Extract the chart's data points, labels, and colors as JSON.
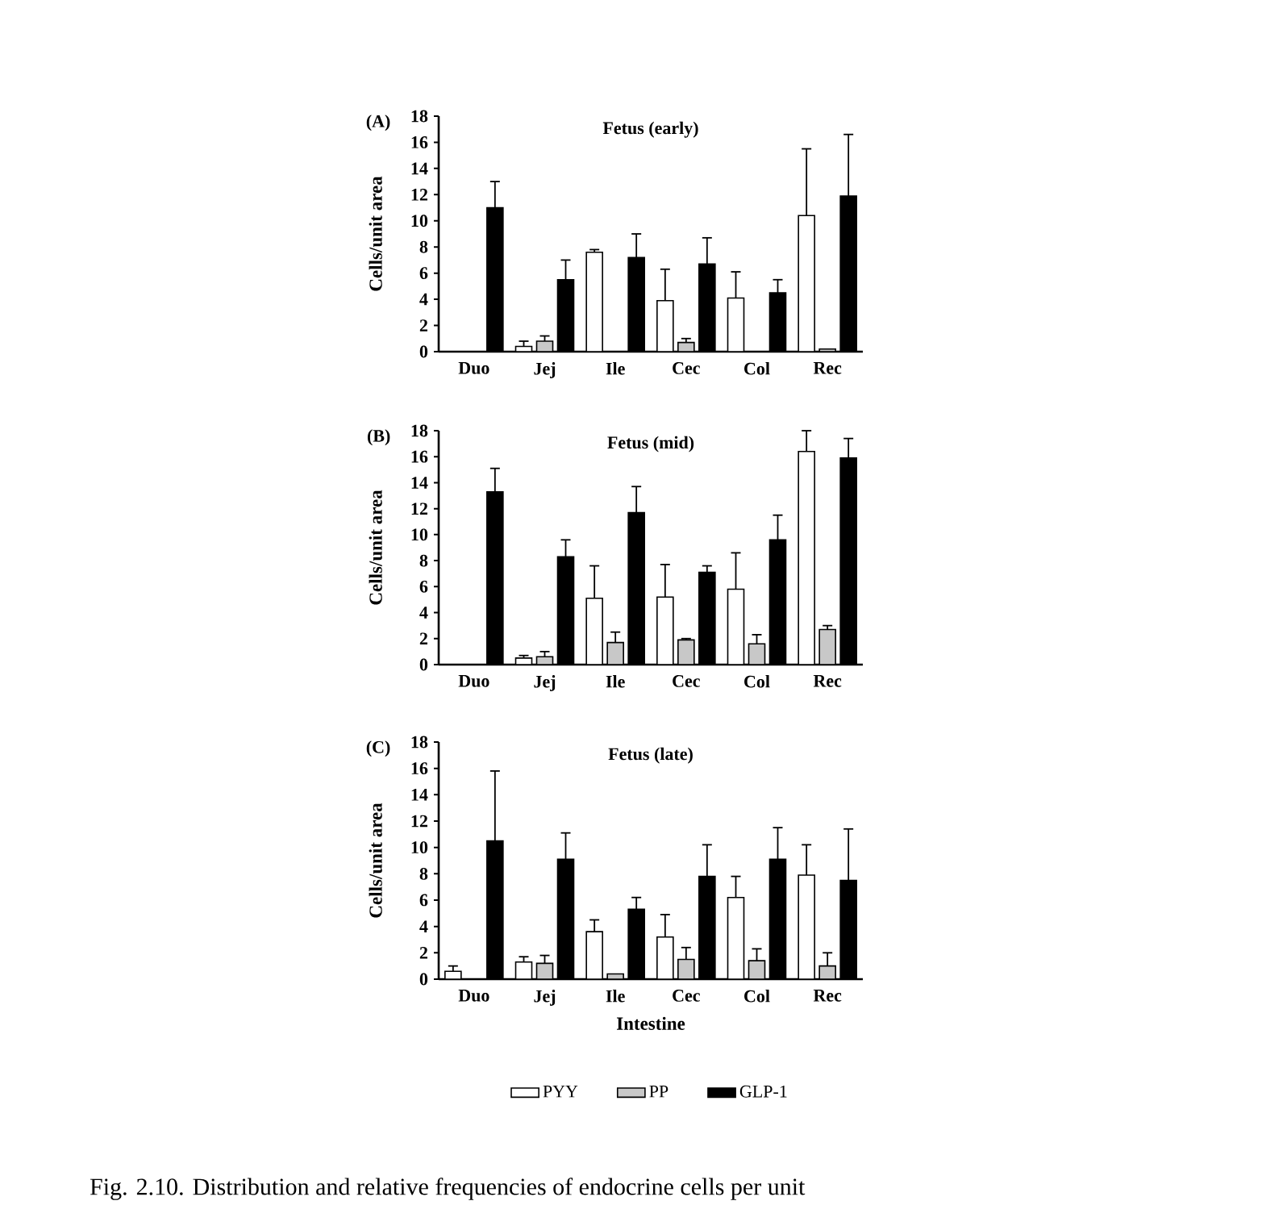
{
  "chart_data": [
    {
      "type": "bar",
      "title": "Fetus (early)",
      "ylabel": "Cells/unit area",
      "annotations": [
        "(A)"
      ],
      "categories": [
        "Duo",
        "Jej",
        "Ile",
        "Cec",
        "Col",
        "Rec"
      ],
      "ylim": [
        0,
        18
      ],
      "yticks": [
        0,
        2,
        4,
        6,
        8,
        10,
        12,
        14,
        16,
        18
      ],
      "series": [
        {
          "color": "#ffffff",
          "values": [
            null,
            0.4,
            7.6,
            3.9,
            4.1,
            10.4
          ],
          "errors": [
            null,
            [
              0.4,
              0.8
            ],
            [
              7.6,
              7.8
            ],
            [
              3.9,
              6.3
            ],
            [
              4.1,
              6.1
            ],
            [
              10.4,
              15.5
            ]
          ]
        },
        {
          "color": "#c8c8c8",
          "values": [
            null,
            0.8,
            null,
            0.7,
            null,
            0.2
          ],
          "errors": [
            null,
            [
              0.8,
              1.2
            ],
            null,
            [
              0.7,
              1.0
            ],
            null,
            null
          ]
        },
        {
          "color": "#000000",
          "values": [
            11.0,
            5.5,
            7.2,
            6.7,
            4.5,
            11.9
          ],
          "errors": [
            [
              11.0,
              13.0
            ],
            [
              5.5,
              7.0
            ],
            [
              7.2,
              9.0
            ],
            [
              6.7,
              8.7
            ],
            [
              4.5,
              5.5
            ],
            [
              11.9,
              16.6
            ]
          ]
        }
      ]
    },
    {
      "type": "bar",
      "title": "Fetus (mid)",
      "ylabel": "Cells/unit area",
      "annotations": [
        "(B)"
      ],
      "categories": [
        "Duo",
        "Jej",
        "Ile",
        "Cec",
        "Col",
        "Rec"
      ],
      "ylim": [
        0,
        18
      ],
      "yticks": [
        0,
        2,
        4,
        6,
        8,
        10,
        12,
        14,
        16,
        18
      ],
      "series": [
        {
          "color": "#ffffff",
          "values": [
            null,
            0.5,
            5.1,
            5.2,
            5.8,
            16.4
          ],
          "errors": [
            null,
            [
              0.5,
              0.7
            ],
            [
              5.1,
              7.6
            ],
            [
              5.2,
              7.7
            ],
            [
              5.8,
              8.6
            ],
            [
              16.4,
              18.0
            ]
          ]
        },
        {
          "color": "#c8c8c8",
          "values": [
            null,
            0.6,
            1.7,
            1.9,
            1.6,
            2.7
          ],
          "errors": [
            null,
            [
              0.6,
              1.0
            ],
            [
              1.7,
              2.5
            ],
            [
              1.9,
              2.0
            ],
            [
              1.6,
              2.3
            ],
            [
              2.7,
              3.0
            ]
          ]
        },
        {
          "color": "#000000",
          "values": [
            13.3,
            8.3,
            11.7,
            7.1,
            9.6,
            15.9
          ],
          "errors": [
            [
              13.3,
              15.1
            ],
            [
              8.3,
              9.6
            ],
            [
              11.7,
              13.7
            ],
            [
              7.1,
              7.6
            ],
            [
              9.6,
              11.5
            ],
            [
              15.9,
              17.4
            ]
          ]
        }
      ]
    },
    {
      "type": "bar",
      "title": "Fetus (late)",
      "xlabel": "Intestine",
      "ylabel": "Cells/unit area",
      "legend": "bottom",
      "annotations": [
        "(C)",
        "Fig. 2.10. Distribution and relative frequencies of endocrine cells per unit"
      ],
      "categories": [
        "Duo",
        "Jej",
        "Ile",
        "Cec",
        "Col",
        "Rec"
      ],
      "ylim": [
        0,
        18
      ],
      "yticks": [
        0,
        2,
        4,
        6,
        8,
        10,
        12,
        14,
        16,
        18
      ],
      "series": [
        {
          "name": "PYY",
          "color": "#ffffff",
          "values": [
            0.6,
            1.3,
            3.6,
            3.2,
            6.2,
            7.9
          ],
          "errors": [
            [
              0.6,
              1.0
            ],
            [
              1.3,
              1.7
            ],
            [
              3.6,
              4.5
            ],
            [
              3.2,
              4.9
            ],
            [
              6.2,
              7.8
            ],
            [
              7.9,
              10.2
            ]
          ]
        },
        {
          "name": "PP",
          "color": "#c8c8c8",
          "values": [
            null,
            1.2,
            0.4,
            1.5,
            1.4,
            1.0
          ],
          "errors": [
            null,
            [
              1.2,
              1.8
            ],
            null,
            [
              1.5,
              2.4
            ],
            [
              1.4,
              2.3
            ],
            [
              1.0,
              2.0
            ]
          ]
        },
        {
          "name": "GLP-1",
          "color": "#000000",
          "values": [
            10.5,
            9.1,
            5.3,
            7.8,
            9.1,
            7.5
          ],
          "errors": [
            [
              10.5,
              15.8
            ],
            [
              9.1,
              11.1
            ],
            [
              5.3,
              6.2
            ],
            [
              7.8,
              10.2
            ],
            [
              9.1,
              11.5
            ],
            [
              7.5,
              11.4
            ]
          ]
        }
      ]
    }
  ]
}
